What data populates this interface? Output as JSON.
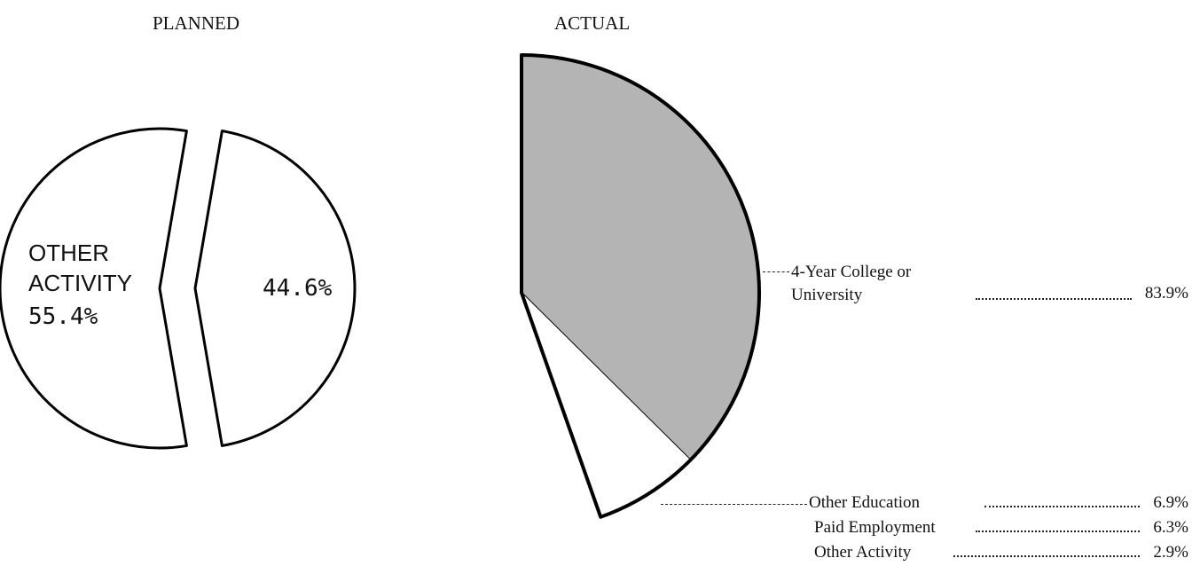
{
  "chart_data": [
    {
      "type": "pie",
      "title": "PLANNED",
      "categories": [
        "OTHER ACTIVITY",
        null
      ],
      "values": [
        55.4,
        44.6
      ],
      "value_labels": [
        "55.4%",
        "44.6%"
      ],
      "colors": [
        "#ffffff",
        "#ffffff"
      ]
    },
    {
      "type": "pie",
      "title": "ACTUAL",
      "categories": [
        "4-Year College or University",
        "Other Education",
        "Paid Employment",
        "Other Activity"
      ],
      "values": [
        83.9,
        6.9,
        6.3,
        2.9
      ],
      "value_labels": [
        "83.9%",
        "6.9%",
        "6.3%",
        "2.9%"
      ],
      "colors": [
        "#b4b4b4",
        "#ffffff",
        "#ffffff",
        "#ffffff"
      ]
    }
  ]
}
